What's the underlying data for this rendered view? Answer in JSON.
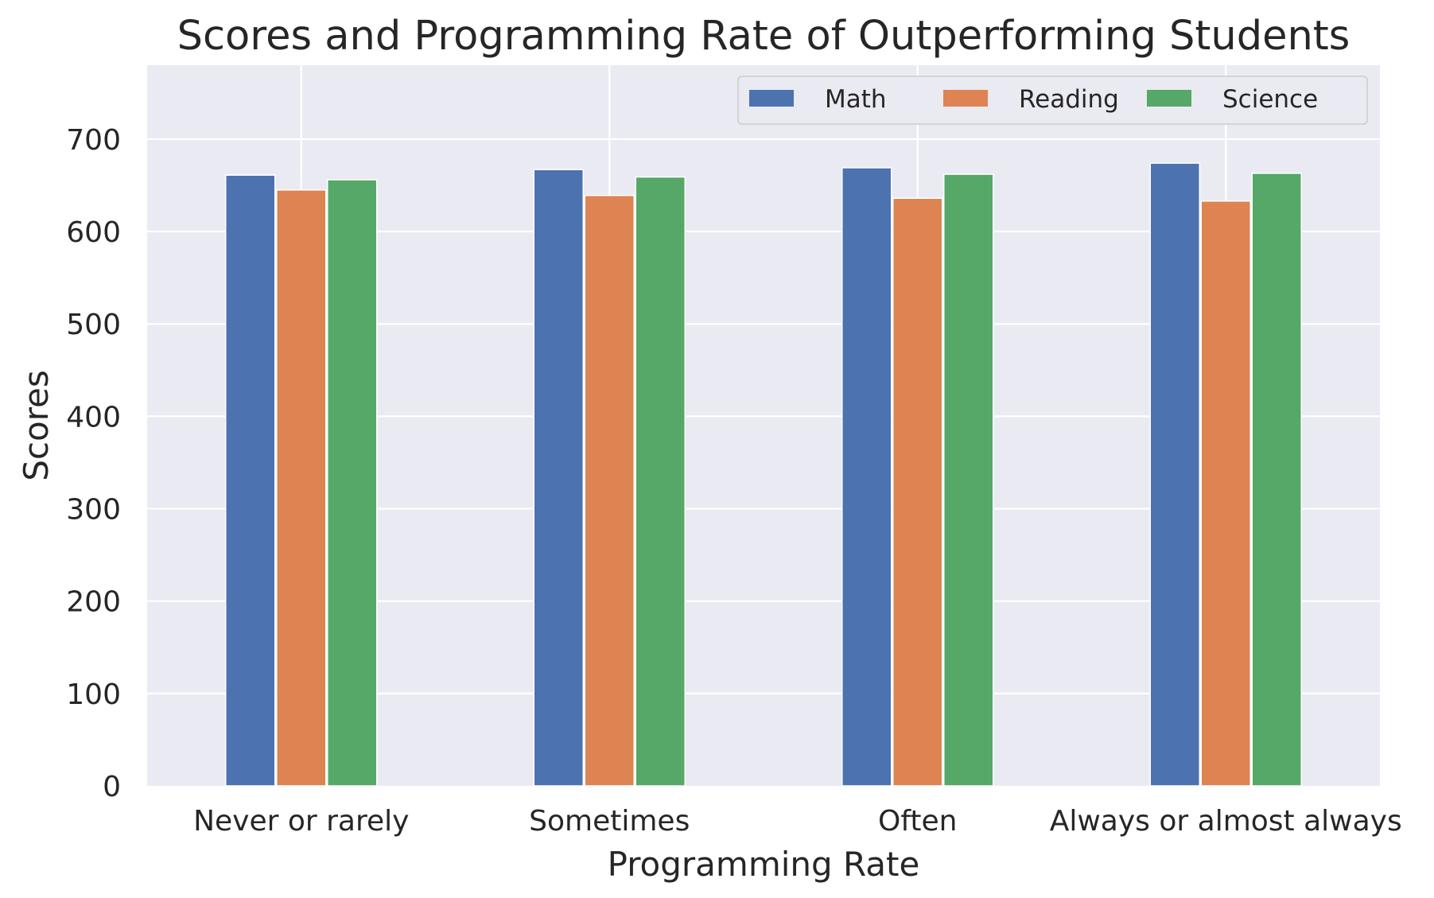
{
  "chart_data": {
    "type": "bar",
    "title": "Scores and Programming Rate of Outperforming Students",
    "xlabel": "Programming Rate",
    "ylabel": "Scores",
    "categories": [
      "Never or rarely",
      "Sometimes",
      "Often",
      "Always or almost always"
    ],
    "series": [
      {
        "name": "Math",
        "color": "#4c72b0",
        "values": [
          661,
          667,
          669,
          674
        ]
      },
      {
        "name": "Reading",
        "color": "#dd8452",
        "values": [
          645,
          639,
          636,
          633
        ]
      },
      {
        "name": "Science",
        "color": "#55a868",
        "values": [
          656,
          659,
          662,
          663
        ]
      }
    ],
    "ylim": [
      0,
      780
    ],
    "yticks": [
      0,
      100,
      200,
      300,
      400,
      500,
      600,
      700
    ],
    "grid": true,
    "legend_position": "top-right",
    "colors": {
      "plot_background": "#eaeaf2",
      "grid": "#ffffff",
      "text": "#262626"
    }
  }
}
